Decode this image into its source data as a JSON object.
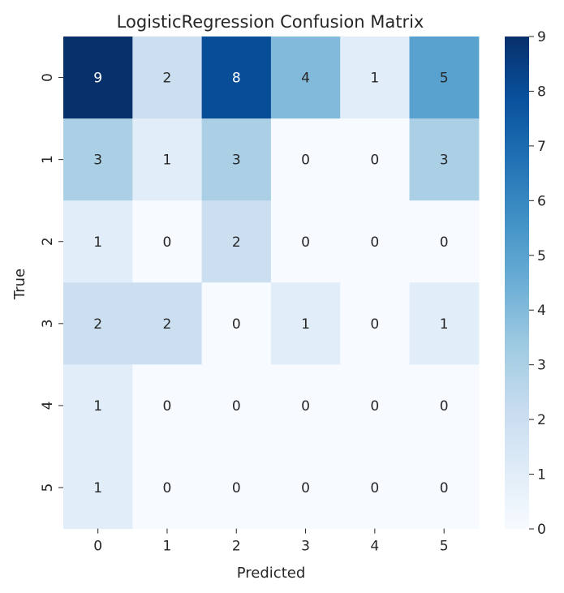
{
  "chart_data": {
    "type": "heatmap",
    "title": "LogisticRegression Confusion Matrix",
    "xlabel": "Predicted",
    "ylabel": "True",
    "x_categories": [
      "0",
      "1",
      "2",
      "3",
      "4",
      "5"
    ],
    "y_categories": [
      "0",
      "1",
      "2",
      "3",
      "4",
      "5"
    ],
    "values": [
      [
        9,
        2,
        8,
        4,
        1,
        5
      ],
      [
        3,
        1,
        3,
        0,
        0,
        3
      ],
      [
        1,
        0,
        2,
        0,
        0,
        0
      ],
      [
        2,
        2,
        0,
        1,
        0,
        1
      ],
      [
        1,
        0,
        0,
        0,
        0,
        0
      ],
      [
        1,
        0,
        0,
        0,
        0,
        0
      ]
    ],
    "colorbar": {
      "range": [
        0,
        9
      ],
      "ticks": [
        "0",
        "1",
        "2",
        "3",
        "4",
        "5",
        "6",
        "7",
        "8",
        "9"
      ],
      "colormap": "Blues"
    },
    "annotated": true,
    "grid": false
  }
}
